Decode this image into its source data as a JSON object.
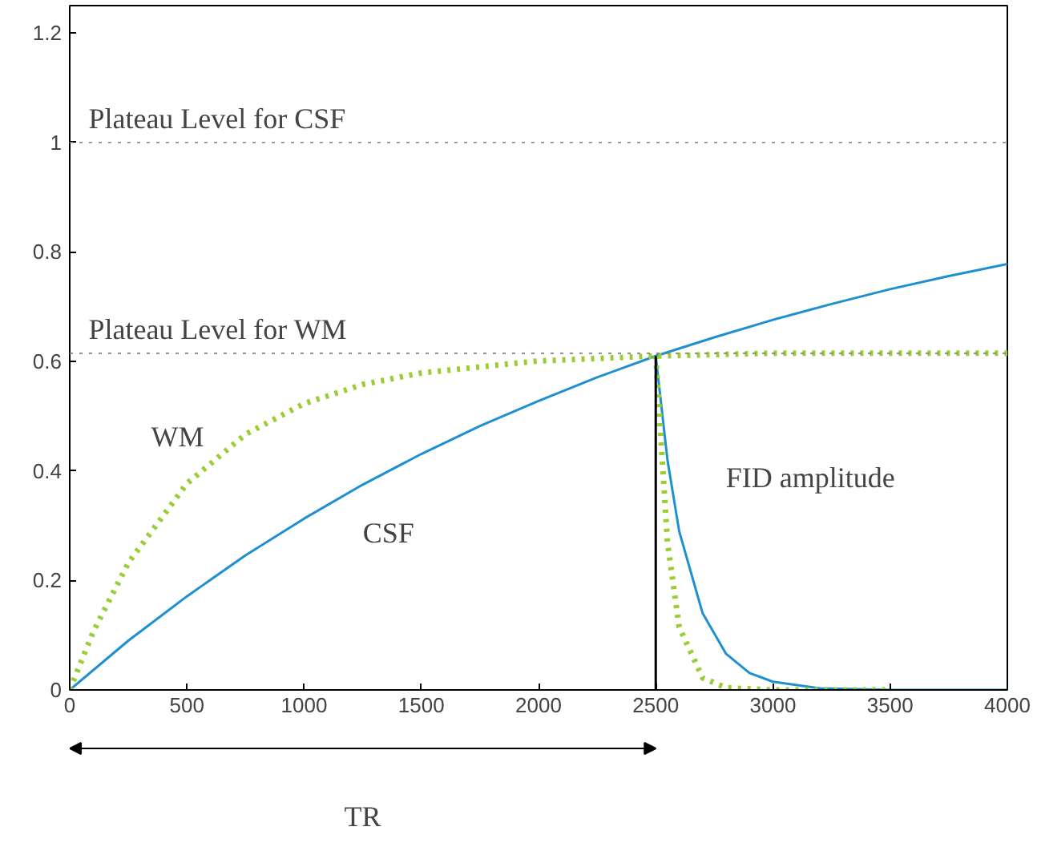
{
  "chart_data": {
    "type": "line",
    "xlim": [
      0,
      4000
    ],
    "ylim": [
      0,
      1.25
    ],
    "xticks": [
      0,
      500,
      1000,
      1500,
      2000,
      2500,
      3000,
      3500,
      4000
    ],
    "yticks": [
      0,
      0.2,
      0.4,
      0.6,
      0.8,
      1,
      1.2
    ],
    "grid": false,
    "marker": "none",
    "series": [
      {
        "color": "#1e90d2",
        "line_style": "solid",
        "x": [
          0,
          250,
          500,
          750,
          1000,
          1250,
          1500,
          1750,
          2000,
          2250,
          2500,
          2750,
          3000,
          3250,
          3500,
          3750,
          4000
        ],
        "values": [
          0,
          0.09,
          0.171,
          0.246,
          0.313,
          0.375,
          0.431,
          0.482,
          0.528,
          0.571,
          0.61,
          0.644,
          0.676,
          0.705,
          0.732,
          0.756,
          0.778
        ]
      },
      {
        "color": "#9acd32",
        "line_style": "dotted",
        "x": [
          0,
          100,
          250,
          500,
          750,
          1000,
          1250,
          1500,
          2000,
          2500,
          3000,
          4000
        ],
        "values": [
          0,
          0.106,
          0.232,
          0.377,
          0.467,
          0.523,
          0.558,
          0.579,
          0.601,
          0.61,
          0.615,
          0.615
        ]
      },
      {
        "color": "#1e90d2",
        "line_style": "solid",
        "x": [
          2500,
          2550,
          2600,
          2700,
          2800,
          2900,
          3000,
          3200,
          3500,
          4000
        ],
        "values": [
          0.61,
          0.42,
          0.29,
          0.14,
          0.066,
          0.031,
          0.015,
          0.003,
          0,
          0
        ]
      },
      {
        "color": "#9acd32",
        "line_style": "dotted",
        "x": [
          2500,
          2550,
          2600,
          2700,
          2800,
          3000,
          3500
        ],
        "values": [
          0.61,
          0.27,
          0.115,
          0.022,
          0.004,
          0,
          0
        ]
      },
      {
        "color": "#000000",
        "line_style": "solid",
        "x": [
          2500,
          2500
        ],
        "values": [
          0,
          0.61
        ]
      }
    ],
    "ref_lines": [
      {
        "axis": "y",
        "value": 1,
        "label": "Plateau Level for CSF",
        "color": "#808080",
        "line_style": "dotted"
      },
      {
        "axis": "y",
        "value": 0.615,
        "label": "Plateau Level for WM",
        "color": "#808080",
        "line_style": "dotted"
      }
    ],
    "annotations": [
      "WM",
      "CSF",
      "FID amplitude",
      "TR"
    ]
  }
}
